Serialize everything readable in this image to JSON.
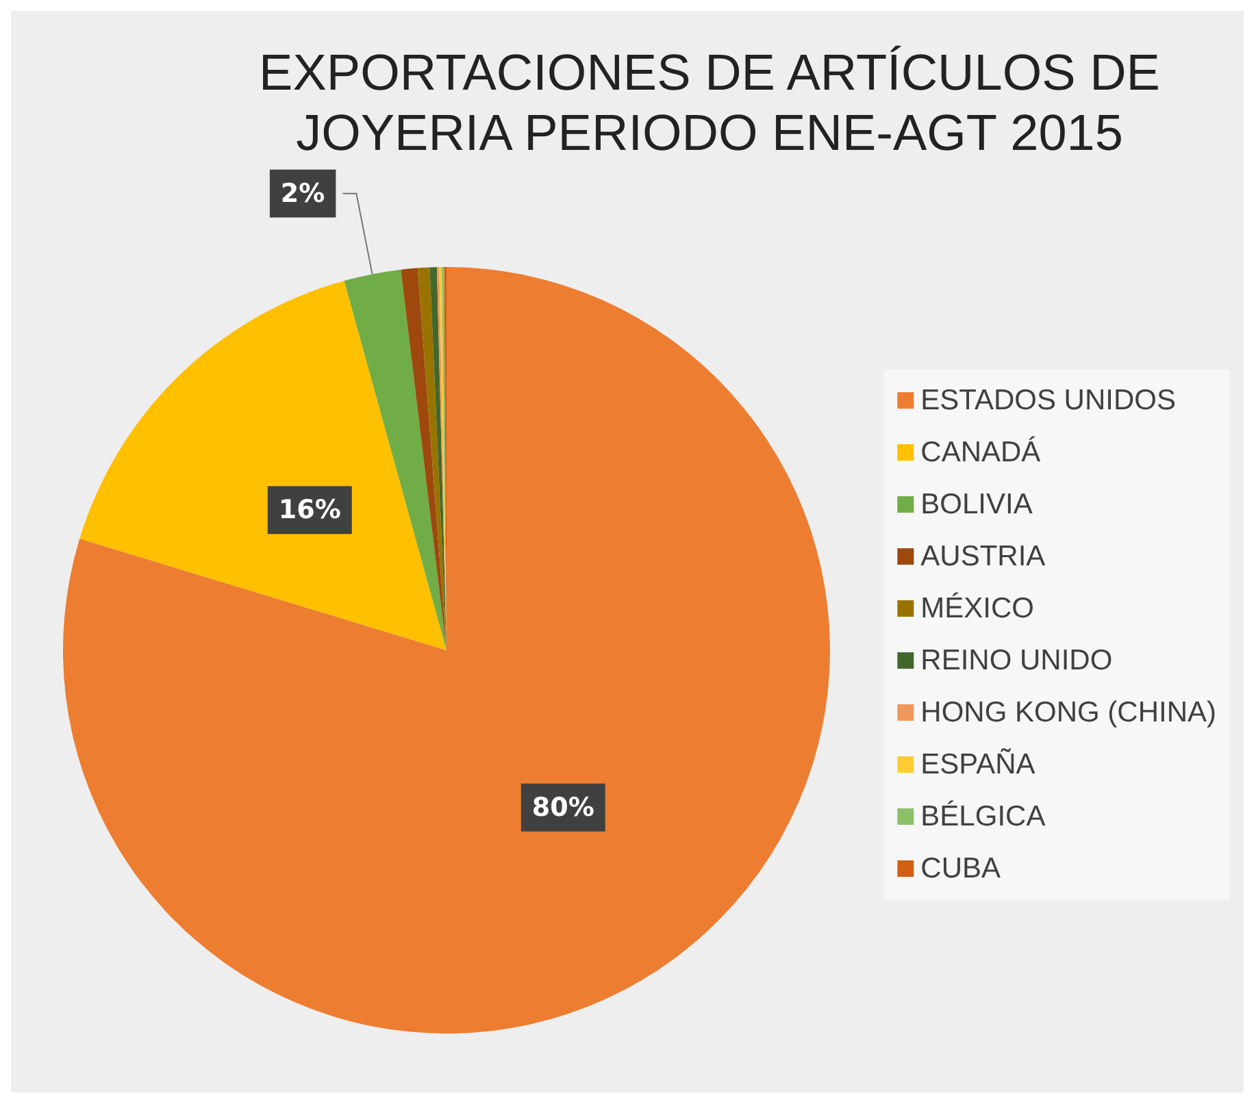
{
  "chart_data": {
    "type": "pie",
    "title": "EXPORTACIONES DE ARTÍCULOS DE\nJOYERIA PERIODO ENE-AGT 2015",
    "categories": [
      "ESTADOS UNIDOS",
      "CANADÁ",
      "BOLIVIA",
      "AUSTRIA",
      "MÉXICO",
      "REINO UNIDO",
      "HONG KONG (CHINA)",
      "ESPAÑA",
      "BÉLGICA",
      "CUBA"
    ],
    "values": [
      79.7,
      16.0,
      2.4,
      0.7,
      0.5,
      0.3,
      0.1,
      0.1,
      0.1,
      0.1
    ],
    "value_labels": [
      "80%",
      "16%",
      "2%",
      null,
      null,
      null,
      null,
      null,
      null,
      null
    ],
    "colors": [
      "#ed7d31",
      "#ffc000",
      "#70ad47",
      "#9e480e",
      "#997300",
      "#43682b",
      "#f1975a",
      "#ffcd33",
      "#8cc168",
      "#d26012"
    ],
    "legend": "right"
  }
}
